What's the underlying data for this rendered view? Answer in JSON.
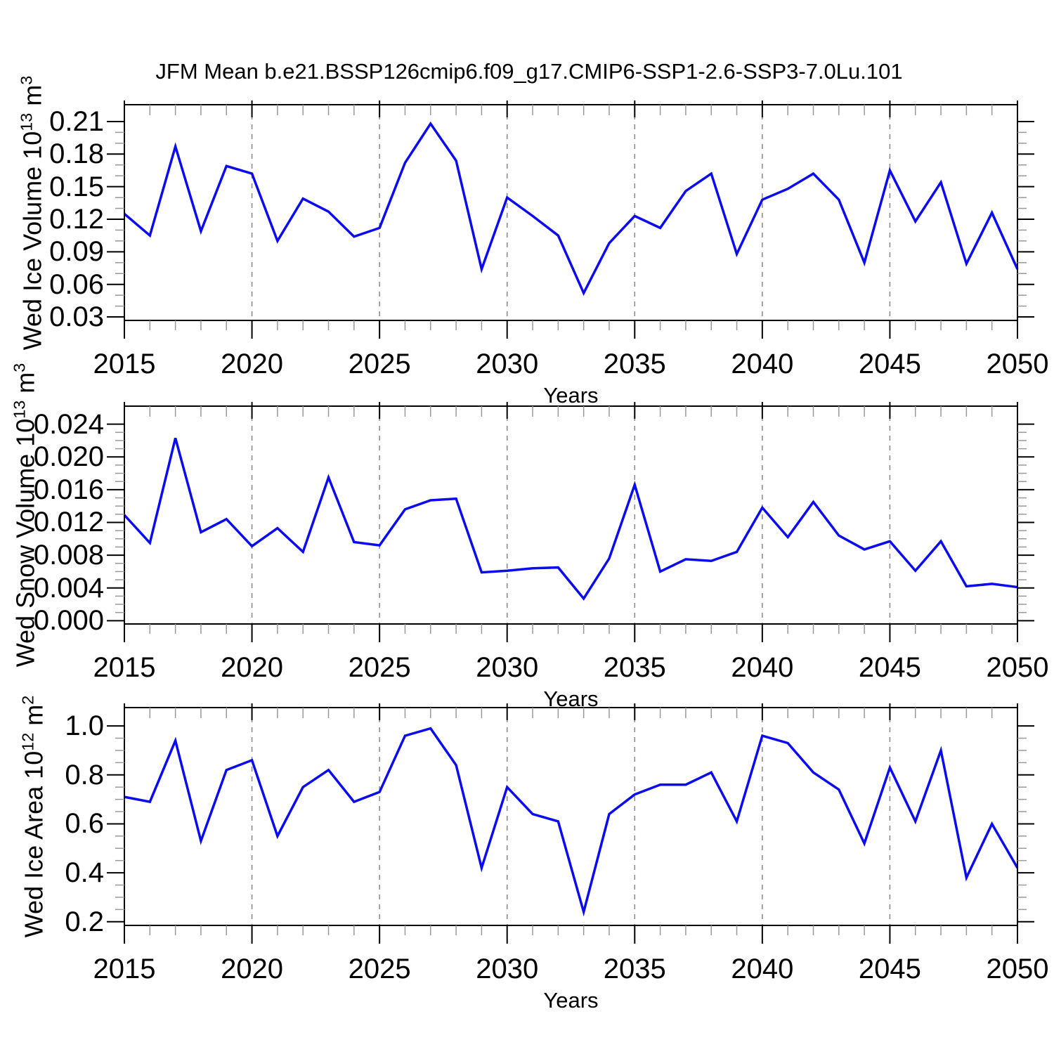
{
  "title": "JFM Mean b.e21.BSSP126cmip6.f09_g17.CMIP6-SSP1-2.6-SSP3-7.0Lu.101",
  "colors": {
    "background": "#ffffff",
    "text": "#000000",
    "axis": "#000000",
    "line": "#0b0bf0",
    "grid_dashed": "#878787",
    "minor_tick": "#999999"
  },
  "x_axis": {
    "label": "Years",
    "years_start": 2015,
    "years_end": 2050,
    "major_tick_step": 5,
    "minor_tick_step": 1,
    "major_tick_labels": [
      "2015",
      "2020",
      "2025",
      "2030",
      "2035",
      "2040",
      "2045",
      "2050"
    ],
    "dashed_gridline_years": [
      2020,
      2025,
      2030,
      2035,
      2040,
      2045
    ]
  },
  "chart_data": [
    {
      "type": "line",
      "name": "wed-ice-volume",
      "ylabel_plain": "Wed Ice Volume 10^13 m^3",
      "ylabel_segments": [
        {
          "text": "Wed Ice Volume 10"
        },
        {
          "text": "13",
          "sup": true
        },
        {
          "text": " m"
        },
        {
          "text": "3",
          "sup": true
        }
      ],
      "xlabel": "Years",
      "y_tick_values": [
        0.03,
        0.06,
        0.09,
        0.12,
        0.15,
        0.18,
        0.21
      ],
      "y_tick_labels": [
        "0.03",
        "0.06",
        "0.09",
        "0.12",
        "0.15",
        "0.18",
        "0.21"
      ],
      "y_minor_step": 0.01,
      "ylim": [
        0.0268,
        0.2255
      ],
      "grid": "vertical-dashed",
      "legend": null,
      "x": [
        2015,
        2016,
        2017,
        2018,
        2019,
        2020,
        2021,
        2022,
        2023,
        2024,
        2025,
        2026,
        2027,
        2028,
        2029,
        2030,
        2031,
        2032,
        2033,
        2034,
        2035,
        2036,
        2037,
        2038,
        2039,
        2040,
        2041,
        2042,
        2043,
        2044,
        2045,
        2046,
        2047,
        2048,
        2049,
        2050
      ],
      "values": [
        0.125,
        0.105,
        0.187,
        0.109,
        0.169,
        0.162,
        0.1,
        0.139,
        0.127,
        0.104,
        0.112,
        0.172,
        0.208,
        0.174,
        0.074,
        0.14,
        0.123,
        0.105,
        0.052,
        0.098,
        0.123,
        0.112,
        0.146,
        0.162,
        0.088,
        0.138,
        0.148,
        0.162,
        0.138,
        0.08,
        0.165,
        0.118,
        0.154,
        0.079,
        0.126,
        0.074
      ]
    },
    {
      "type": "line",
      "name": "wed-snow-volume",
      "ylabel_plain": "Wed Snow Volume 10^13 m^3",
      "ylabel_segments": [
        {
          "text": "Wed Snow Volume 10"
        },
        {
          "text": "13",
          "sup": true
        },
        {
          "text": " m"
        },
        {
          "text": "3",
          "sup": true
        }
      ],
      "xlabel": "Years",
      "y_tick_values": [
        0.0,
        0.004,
        0.008,
        0.012,
        0.016,
        0.02,
        0.024
      ],
      "y_tick_labels": [
        "0.000",
        "0.004",
        "0.008",
        "0.012",
        "0.016",
        "0.020",
        "0.024"
      ],
      "y_minor_step": 0.001,
      "ylim": [
        -0.0004,
        0.0262
      ],
      "grid": "vertical-dashed",
      "legend": null,
      "x": [
        2015,
        2016,
        2017,
        2018,
        2019,
        2020,
        2021,
        2022,
        2023,
        2024,
        2025,
        2026,
        2027,
        2028,
        2029,
        2030,
        2031,
        2032,
        2033,
        2034,
        2035,
        2036,
        2037,
        2038,
        2039,
        2040,
        2041,
        2042,
        2043,
        2044,
        2045,
        2046,
        2047,
        2048,
        2049,
        2050
      ],
      "values": [
        0.0129,
        0.0095,
        0.0223,
        0.0108,
        0.0124,
        0.0091,
        0.0113,
        0.0084,
        0.0175,
        0.0096,
        0.0092,
        0.0136,
        0.0147,
        0.0149,
        0.0059,
        0.0061,
        0.0064,
        0.0065,
        0.0027,
        0.0076,
        0.0166,
        0.006,
        0.0075,
        0.0073,
        0.0084,
        0.0138,
        0.0102,
        0.0145,
        0.0104,
        0.0087,
        0.0097,
        0.0061,
        0.0097,
        0.0042,
        0.0045,
        0.0041
      ]
    },
    {
      "type": "line",
      "name": "wed-ice-area",
      "ylabel_plain": "Wed Ice Area 10^12 m^2",
      "ylabel_segments": [
        {
          "text": "Wed Ice Area 10"
        },
        {
          "text": "12",
          "sup": true
        },
        {
          "text": " m"
        },
        {
          "text": "2",
          "sup": true
        }
      ],
      "xlabel": "Years",
      "y_tick_values": [
        0.2,
        0.4,
        0.6,
        0.8,
        1.0
      ],
      "y_tick_labels": [
        "0.2",
        "0.4",
        "0.6",
        "0.8",
        "1.0"
      ],
      "y_minor_step": 0.05,
      "ylim": [
        0.185,
        1.075
      ],
      "grid": "vertical-dashed",
      "legend": null,
      "x": [
        2015,
        2016,
        2017,
        2018,
        2019,
        2020,
        2021,
        2022,
        2023,
        2024,
        2025,
        2026,
        2027,
        2028,
        2029,
        2030,
        2031,
        2032,
        2033,
        2034,
        2035,
        2036,
        2037,
        2038,
        2039,
        2040,
        2041,
        2042,
        2043,
        2044,
        2045,
        2046,
        2047,
        2048,
        2049,
        2050
      ],
      "values": [
        0.71,
        0.69,
        0.94,
        0.53,
        0.82,
        0.86,
        0.55,
        0.75,
        0.82,
        0.69,
        0.73,
        0.96,
        0.99,
        0.84,
        0.42,
        0.75,
        0.64,
        0.61,
        0.24,
        0.64,
        0.72,
        0.76,
        0.76,
        0.81,
        0.61,
        0.96,
        0.93,
        0.81,
        0.74,
        0.52,
        0.83,
        0.61,
        0.9,
        0.38,
        0.6,
        0.42
      ]
    }
  ]
}
